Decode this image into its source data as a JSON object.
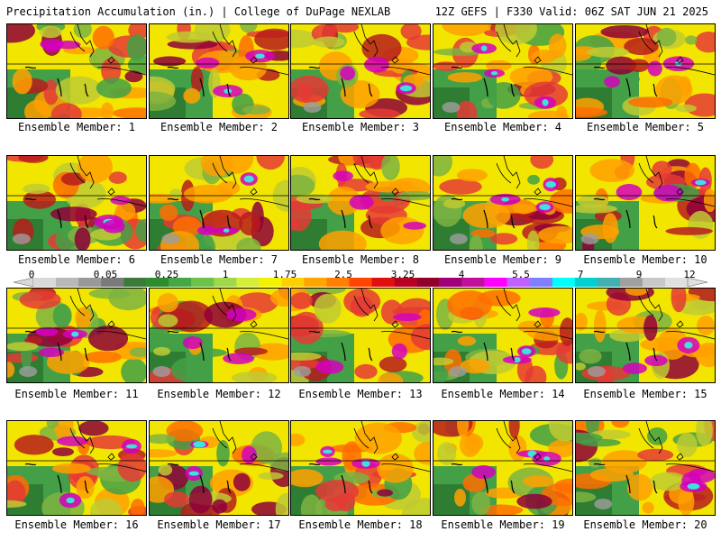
{
  "header": {
    "left": "Precipitation Accumulation (in.) | College of DuPage NEXLAB",
    "right": "12Z GEFS | F330 Valid: 06Z SAT JUN 21 2025"
  },
  "legend": {
    "labels": [
      "0",
      "0.05",
      "0.25",
      "1",
      "1.75",
      "2.5",
      "3.25",
      "4",
      "5.5",
      "7",
      "9",
      "12"
    ],
    "colors": [
      "#d9d9d9",
      "#b8b8b8",
      "#999999",
      "#7a7a7a",
      "#3c7a3c",
      "#2e8b2e",
      "#45a845",
      "#6cc24a",
      "#9fd84a",
      "#d6ee3a",
      "#f3f300",
      "#ffd000",
      "#ffa500",
      "#ff7f00",
      "#ff4500",
      "#e01010",
      "#b80020",
      "#90002a",
      "#a0007a",
      "#c0109a",
      "#ff00ff",
      "#c060ff",
      "#8080ff",
      "#00ffff",
      "#00d0d0",
      "#40b0b0",
      "#a0a0a0",
      "#c8c8c8",
      "#e0e0e0"
    ]
  },
  "panels": [
    {
      "caption": "Ensemble Member: 1"
    },
    {
      "caption": "Ensemble Member: 2"
    },
    {
      "caption": "Ensemble Member: 3"
    },
    {
      "caption": "Ensemble Member: 4"
    },
    {
      "caption": "Ensemble Member: 5"
    },
    {
      "caption": "Ensemble Member: 6"
    },
    {
      "caption": "Ensemble Member: 7"
    },
    {
      "caption": "Ensemble Member: 8"
    },
    {
      "caption": "Ensemble Member: 9"
    },
    {
      "caption": "Ensemble Member: 10"
    },
    {
      "caption": "Ensemble Member: 11"
    },
    {
      "caption": "Ensemble Member: 12"
    },
    {
      "caption": "Ensemble Member: 13"
    },
    {
      "caption": "Ensemble Member: 14"
    },
    {
      "caption": "Ensemble Member: 15"
    },
    {
      "caption": "Ensemble Member: 16"
    },
    {
      "caption": "Ensemble Member: 17"
    },
    {
      "caption": "Ensemble Member: 18"
    },
    {
      "caption": "Ensemble Member: 19"
    },
    {
      "caption": "Ensemble Member: 20"
    }
  ]
}
